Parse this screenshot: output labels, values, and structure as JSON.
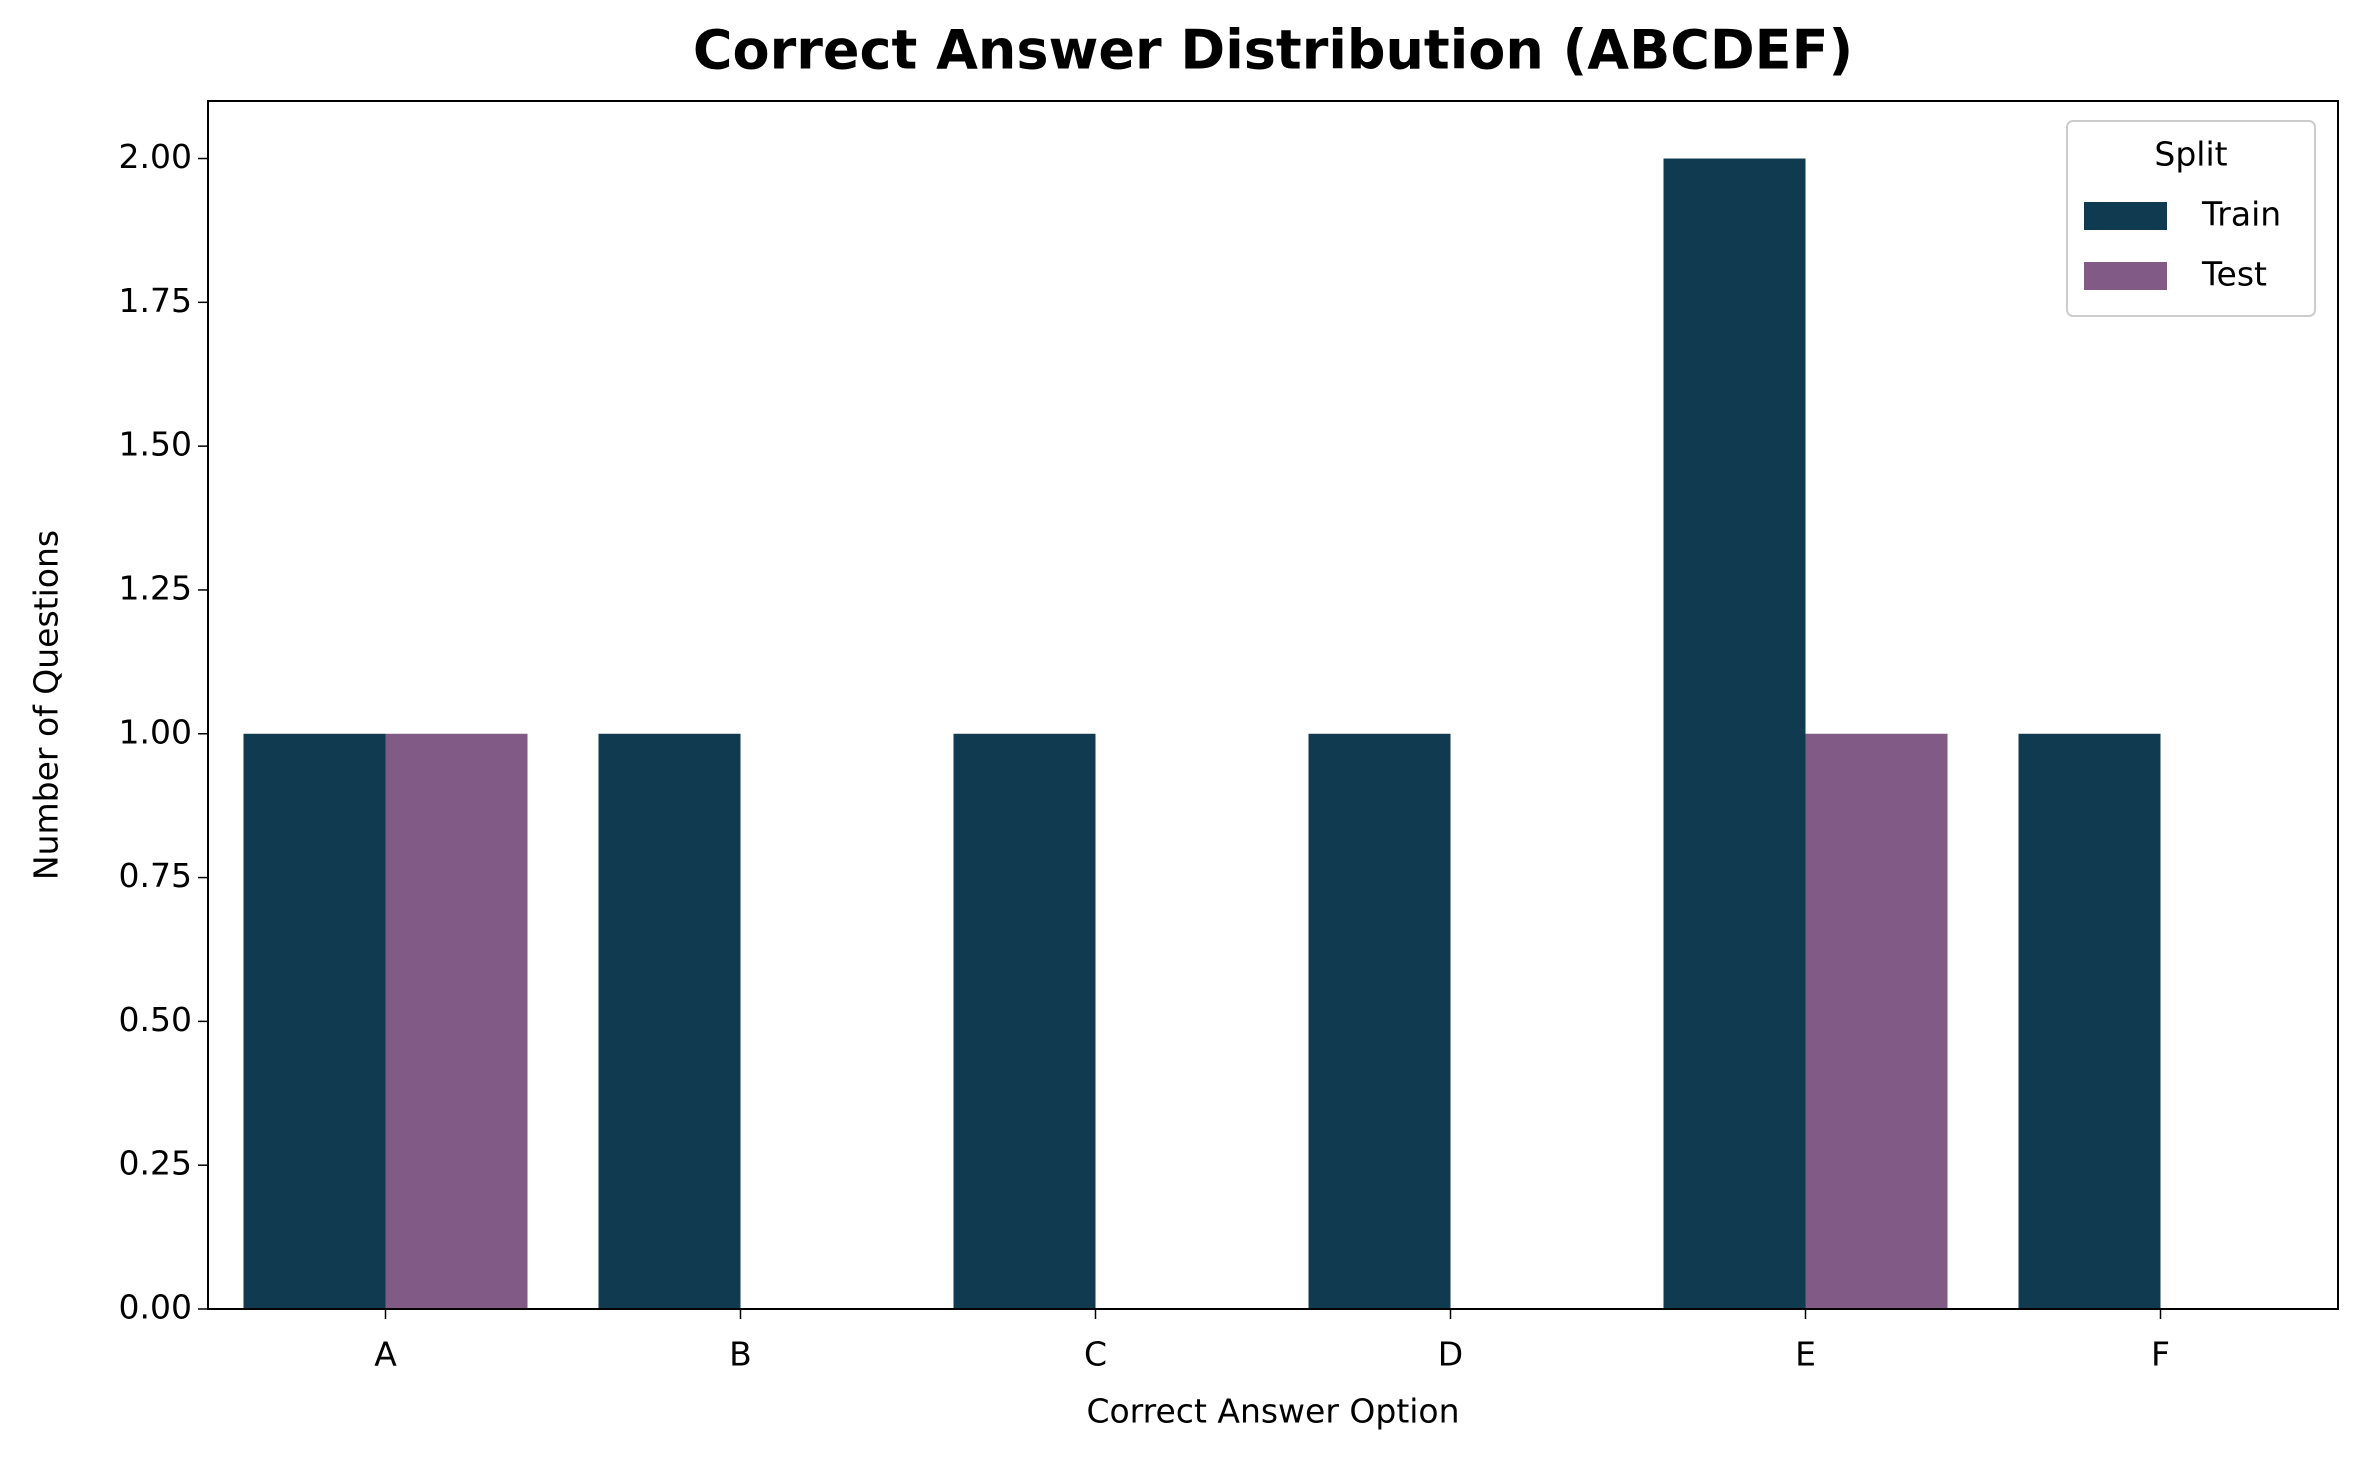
{
  "chart_data": {
    "type": "bar",
    "title": "Correct Answer Distribution (ABCDEF)",
    "x_label": "Correct Answer Option",
    "y_label": "Number of Questions",
    "categories": [
      "A",
      "B",
      "C",
      "D",
      "E",
      "F"
    ],
    "series": [
      {
        "name": "Train",
        "color": "#0f3a50",
        "values": [
          1,
          1,
          1,
          1,
          2,
          1
        ]
      },
      {
        "name": "Test",
        "color": "#825a86",
        "values": [
          1,
          0,
          0,
          0,
          1,
          0
        ]
      }
    ],
    "legend_title": "Split",
    "legend_position": "upper right",
    "ylim": [
      0,
      2.1
    ],
    "yticks": [
      {
        "value": 0,
        "label": "0.00"
      },
      {
        "value": 0.25,
        "label": "0.25"
      },
      {
        "value": 0.5,
        "label": "0.50"
      },
      {
        "value": 0.75,
        "label": "0.75"
      },
      {
        "value": 1,
        "label": "1.00"
      },
      {
        "value": 1.25,
        "label": "1.25"
      },
      {
        "value": 1.5,
        "label": "1.50"
      },
      {
        "value": 1.75,
        "label": "1.75"
      },
      {
        "value": 2,
        "label": "2.00"
      }
    ],
    "grid": false
  }
}
